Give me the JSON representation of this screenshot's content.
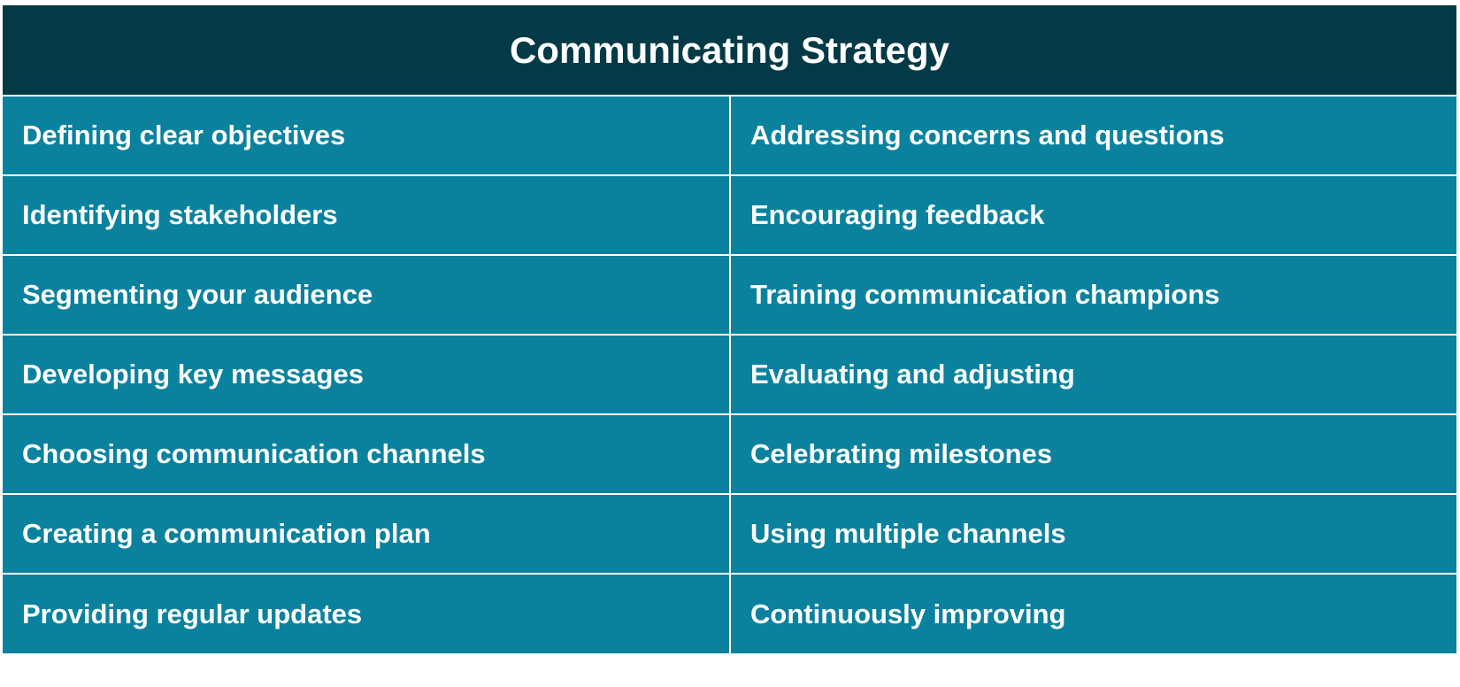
{
  "table": {
    "title": "Communicating Strategy",
    "rows": [
      [
        "Defining clear objectives",
        "Addressing concerns and questions"
      ],
      [
        "Identifying stakeholders",
        "Encouraging feedback"
      ],
      [
        "Segmenting your audience",
        "Training communication champions"
      ],
      [
        "Developing key messages",
        "Evaluating and adjusting"
      ],
      [
        "Choosing communication channels",
        "Celebrating milestones"
      ],
      [
        "Creating a communication plan",
        "Using multiple channels"
      ],
      [
        "Providing regular updates",
        "Continuously improving"
      ]
    ],
    "colors": {
      "header_bg": "#043a47",
      "cell_bg": "#0a829e",
      "text": "#ffffff",
      "grid": "#ffffff"
    }
  }
}
